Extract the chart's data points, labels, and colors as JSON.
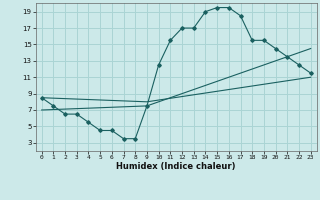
{
  "title": "",
  "xlabel": "Humidex (Indice chaleur)",
  "ylabel": "",
  "background_color": "#cce9e9",
  "grid_color": "#aad4d4",
  "line_color": "#1a6060",
  "xlim": [
    -0.5,
    23.5
  ],
  "ylim": [
    2,
    20
  ],
  "yticks": [
    3,
    5,
    7,
    9,
    11,
    13,
    15,
    17,
    19
  ],
  "xticks": [
    0,
    1,
    2,
    3,
    4,
    5,
    6,
    7,
    8,
    9,
    10,
    11,
    12,
    13,
    14,
    15,
    16,
    17,
    18,
    19,
    20,
    21,
    22,
    23
  ],
  "line1_x": [
    0,
    1,
    2,
    3,
    4,
    5,
    6,
    7,
    8,
    9,
    10,
    11,
    12,
    13,
    14,
    15,
    16,
    17,
    18,
    19,
    20,
    21,
    22,
    23
  ],
  "line1_y": [
    8.5,
    7.5,
    6.5,
    6.5,
    5.5,
    4.5,
    4.5,
    3.5,
    3.5,
    7.5,
    12.5,
    15.5,
    17.0,
    17.0,
    19.0,
    19.5,
    19.5,
    18.5,
    15.5,
    15.5,
    14.5,
    13.5,
    12.5,
    11.5
  ],
  "line2_x": [
    0,
    9,
    23
  ],
  "line2_y": [
    8.5,
    8.0,
    11.0
  ],
  "line3_x": [
    0,
    9,
    23
  ],
  "line3_y": [
    7.0,
    7.5,
    14.5
  ]
}
